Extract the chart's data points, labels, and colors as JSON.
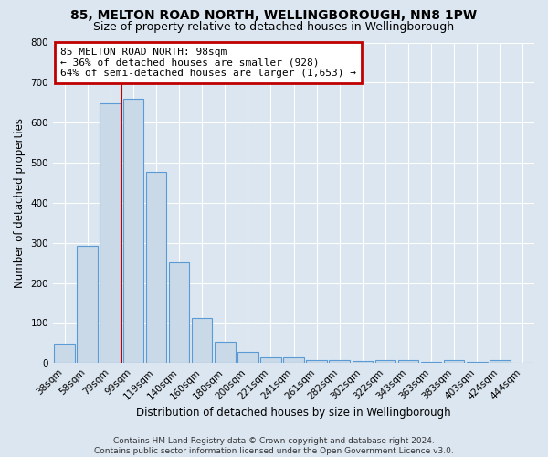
{
  "title": "85, MELTON ROAD NORTH, WELLINGBOROUGH, NN8 1PW",
  "subtitle": "Size of property relative to detached houses in Wellingborough",
  "xlabel": "Distribution of detached houses by size in Wellingborough",
  "ylabel": "Number of detached properties",
  "bar_labels": [
    "38sqm",
    "58sqm",
    "79sqm",
    "99sqm",
    "119sqm",
    "140sqm",
    "160sqm",
    "180sqm",
    "200sqm",
    "221sqm",
    "241sqm",
    "261sqm",
    "282sqm",
    "302sqm",
    "322sqm",
    "343sqm",
    "363sqm",
    "383sqm",
    "403sqm",
    "424sqm",
    "444sqm"
  ],
  "bar_values": [
    48,
    293,
    648,
    660,
    478,
    252,
    113,
    52,
    29,
    15,
    15,
    8,
    7,
    5,
    8,
    8,
    3,
    8,
    2,
    8,
    0
  ],
  "bar_color": "#c9d9e8",
  "bar_edge_color": "#5b9bd5",
  "vline_color": "#c00000",
  "annotation_text": "85 MELTON ROAD NORTH: 98sqm\n← 36% of detached houses are smaller (928)\n64% of semi-detached houses are larger (1,653) →",
  "annotation_box_color": "#ffffff",
  "annotation_box_edge": "#c00000",
  "ylim": [
    0,
    800
  ],
  "yticks": [
    0,
    100,
    200,
    300,
    400,
    500,
    600,
    700,
    800
  ],
  "footer_line1": "Contains HM Land Registry data © Crown copyright and database right 2024.",
  "footer_line2": "Contains public sector information licensed under the Open Government Licence v3.0.",
  "bg_color": "#dce6f0",
  "plot_bg_color": "#dce6f0",
  "grid_color": "#ffffff",
  "title_fontsize": 10,
  "subtitle_fontsize": 9,
  "axis_label_fontsize": 8.5,
  "tick_fontsize": 7.5,
  "annotation_fontsize": 8,
  "footer_fontsize": 6.5
}
